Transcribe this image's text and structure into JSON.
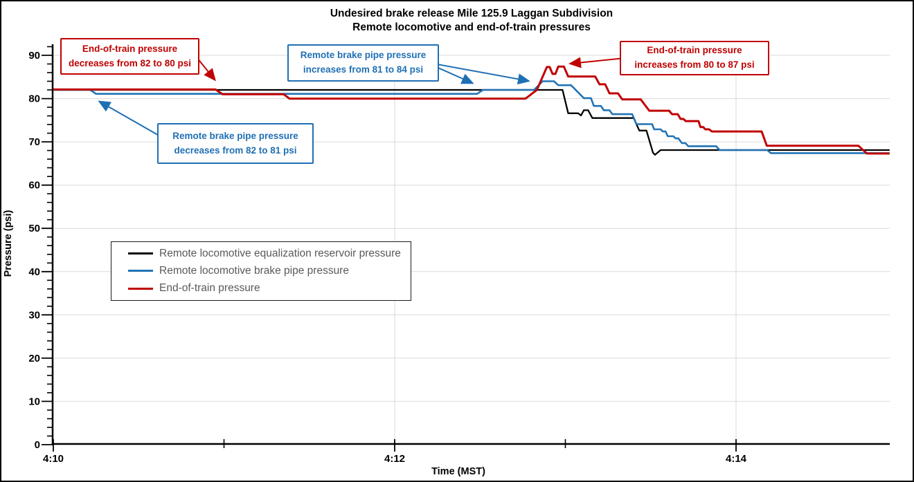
{
  "title": {
    "line1": "Undesired brake release Mile 125.9 Laggan Subdivision",
    "line2": "Remote locomotive and end-of-train pressures"
  },
  "colors": {
    "red": "#C00000",
    "blue": "#2173B4",
    "black": "#000000",
    "grid": "#D9D9D9",
    "axis": "#000000",
    "legend_text": "#595959"
  },
  "legend": {
    "items": [
      {
        "label": "Remote locomotive equalization reservoir pressure",
        "color": "#000000"
      },
      {
        "label": "Remote locomotive brake pipe pressure",
        "color": "#2173B4"
      },
      {
        "label": "End-of-train pressure",
        "color": "#C00000"
      }
    ]
  },
  "annotations": [
    {
      "id": "eot-decrease",
      "color": "#C00000",
      "line1": "End-of-train pressure",
      "line2": "decreases from 82 to 80 psi"
    },
    {
      "id": "bpp-decrease",
      "color": "#1F6FB4",
      "line1": "Remote brake pipe pressure",
      "line2": "decreases from 82 to 81 psi"
    },
    {
      "id": "bpp-increase",
      "color": "#1F6FB4",
      "line1": "Remote brake pipe pressure",
      "line2": "increases from 81 to 84 psi"
    },
    {
      "id": "eot-increase",
      "color": "#C00000",
      "line1": "End-of-train pressure",
      "line2": "increases from 80 to 87 psi"
    }
  ],
  "chart_data": {
    "type": "line",
    "title": "Undesired brake release Mile 125.9 Laggan Subdivision",
    "subtitle": "Remote locomotive and end-of-train pressures",
    "xlabel": "Time (MST)",
    "ylabel": "Pressure (psi)",
    "x_unit": "seconds after 4:10 MST",
    "xlim_sec": [
      0,
      294
    ],
    "ylim": [
      0,
      92.6
    ],
    "grid": "major",
    "legend_position": "inside-left",
    "x_major_ticks": [
      {
        "sec": 0,
        "label": "4:10"
      },
      {
        "sec": 120,
        "label": "4:12"
      },
      {
        "sec": 240,
        "label": "4:14"
      }
    ],
    "x_minor_ticks_sec": [
      60,
      180
    ],
    "y_major_ticks": [
      0,
      10,
      20,
      30,
      40,
      50,
      60,
      70,
      80,
      90
    ],
    "y_minor_step": 2,
    "series": [
      {
        "name": "Remote locomotive equalization reservoir pressure",
        "color": "#000000",
        "width": 2.3,
        "points": [
          [
            0,
            82
          ],
          [
            179,
            82
          ],
          [
            181,
            76.6
          ],
          [
            184.5,
            76.6
          ],
          [
            185.5,
            76.1
          ],
          [
            186.5,
            77.3
          ],
          [
            188,
            77.3
          ],
          [
            189.5,
            75.5
          ],
          [
            204,
            75.5
          ],
          [
            206,
            72.6
          ],
          [
            208.5,
            72.6
          ],
          [
            210.8,
            67.5
          ],
          [
            211.5,
            67
          ],
          [
            213.5,
            68.1
          ],
          [
            294,
            68.1
          ]
        ]
      },
      {
        "name": "Remote locomotive brake pipe pressure",
        "color": "#2173B4",
        "width": 2.6,
        "points": [
          [
            0,
            82
          ],
          [
            13,
            82
          ],
          [
            15,
            81.1
          ],
          [
            149,
            81.1
          ],
          [
            151,
            82
          ],
          [
            169,
            82
          ],
          [
            172,
            84
          ],
          [
            176,
            84
          ],
          [
            177.5,
            83.1
          ],
          [
            182,
            83.1
          ],
          [
            186.5,
            80.1
          ],
          [
            189,
            80.1
          ],
          [
            190,
            78.3
          ],
          [
            192.5,
            78.3
          ],
          [
            193.5,
            77.3
          ],
          [
            195.5,
            77.3
          ],
          [
            196.5,
            76.4
          ],
          [
            203.5,
            76.4
          ],
          [
            205,
            74.1
          ],
          [
            210.5,
            74.1
          ],
          [
            211.2,
            72.9
          ],
          [
            213.5,
            72.9
          ],
          [
            214.2,
            72.4
          ],
          [
            215.2,
            72.4
          ],
          [
            216,
            71.3
          ],
          [
            218,
            71.3
          ],
          [
            218.7,
            70.8
          ],
          [
            219.7,
            70.8
          ],
          [
            221,
            69.7
          ],
          [
            222.2,
            69.7
          ],
          [
            223.2,
            69
          ],
          [
            233,
            69
          ],
          [
            234.2,
            68.1
          ],
          [
            251,
            68.1
          ],
          [
            252.2,
            67.4
          ],
          [
            294,
            67.4
          ]
        ]
      },
      {
        "name": "End-of-train pressure",
        "color": "#C00000",
        "width": 3,
        "points": [
          [
            0,
            82.1
          ],
          [
            57,
            82.1
          ],
          [
            59.5,
            81
          ],
          [
            81,
            81
          ],
          [
            83,
            80
          ],
          [
            166,
            80
          ],
          [
            170,
            82
          ],
          [
            173.5,
            87.3
          ],
          [
            174.5,
            87.3
          ],
          [
            175.5,
            85.7
          ],
          [
            176.5,
            85.7
          ],
          [
            177.5,
            87.4
          ],
          [
            179.5,
            87.4
          ],
          [
            181,
            85.1
          ],
          [
            190.5,
            85.1
          ],
          [
            192,
            83.3
          ],
          [
            194,
            83.3
          ],
          [
            195.5,
            81.2
          ],
          [
            198.5,
            81.2
          ],
          [
            200,
            79.8
          ],
          [
            206.5,
            79.8
          ],
          [
            209.5,
            77.2
          ],
          [
            216.5,
            77.2
          ],
          [
            217.5,
            76.4
          ],
          [
            219.5,
            76.4
          ],
          [
            220.5,
            75.3
          ],
          [
            221.5,
            75.3
          ],
          [
            222.3,
            74.8
          ],
          [
            226.8,
            74.8
          ],
          [
            227.5,
            73.4
          ],
          [
            228.5,
            73.4
          ],
          [
            229.2,
            72.9
          ],
          [
            230.5,
            72.9
          ],
          [
            231.5,
            72.4
          ],
          [
            249,
            72.4
          ],
          [
            250.8,
            69.1
          ],
          [
            283,
            69.1
          ],
          [
            286,
            67.3
          ],
          [
            294,
            67.3
          ]
        ]
      }
    ]
  }
}
